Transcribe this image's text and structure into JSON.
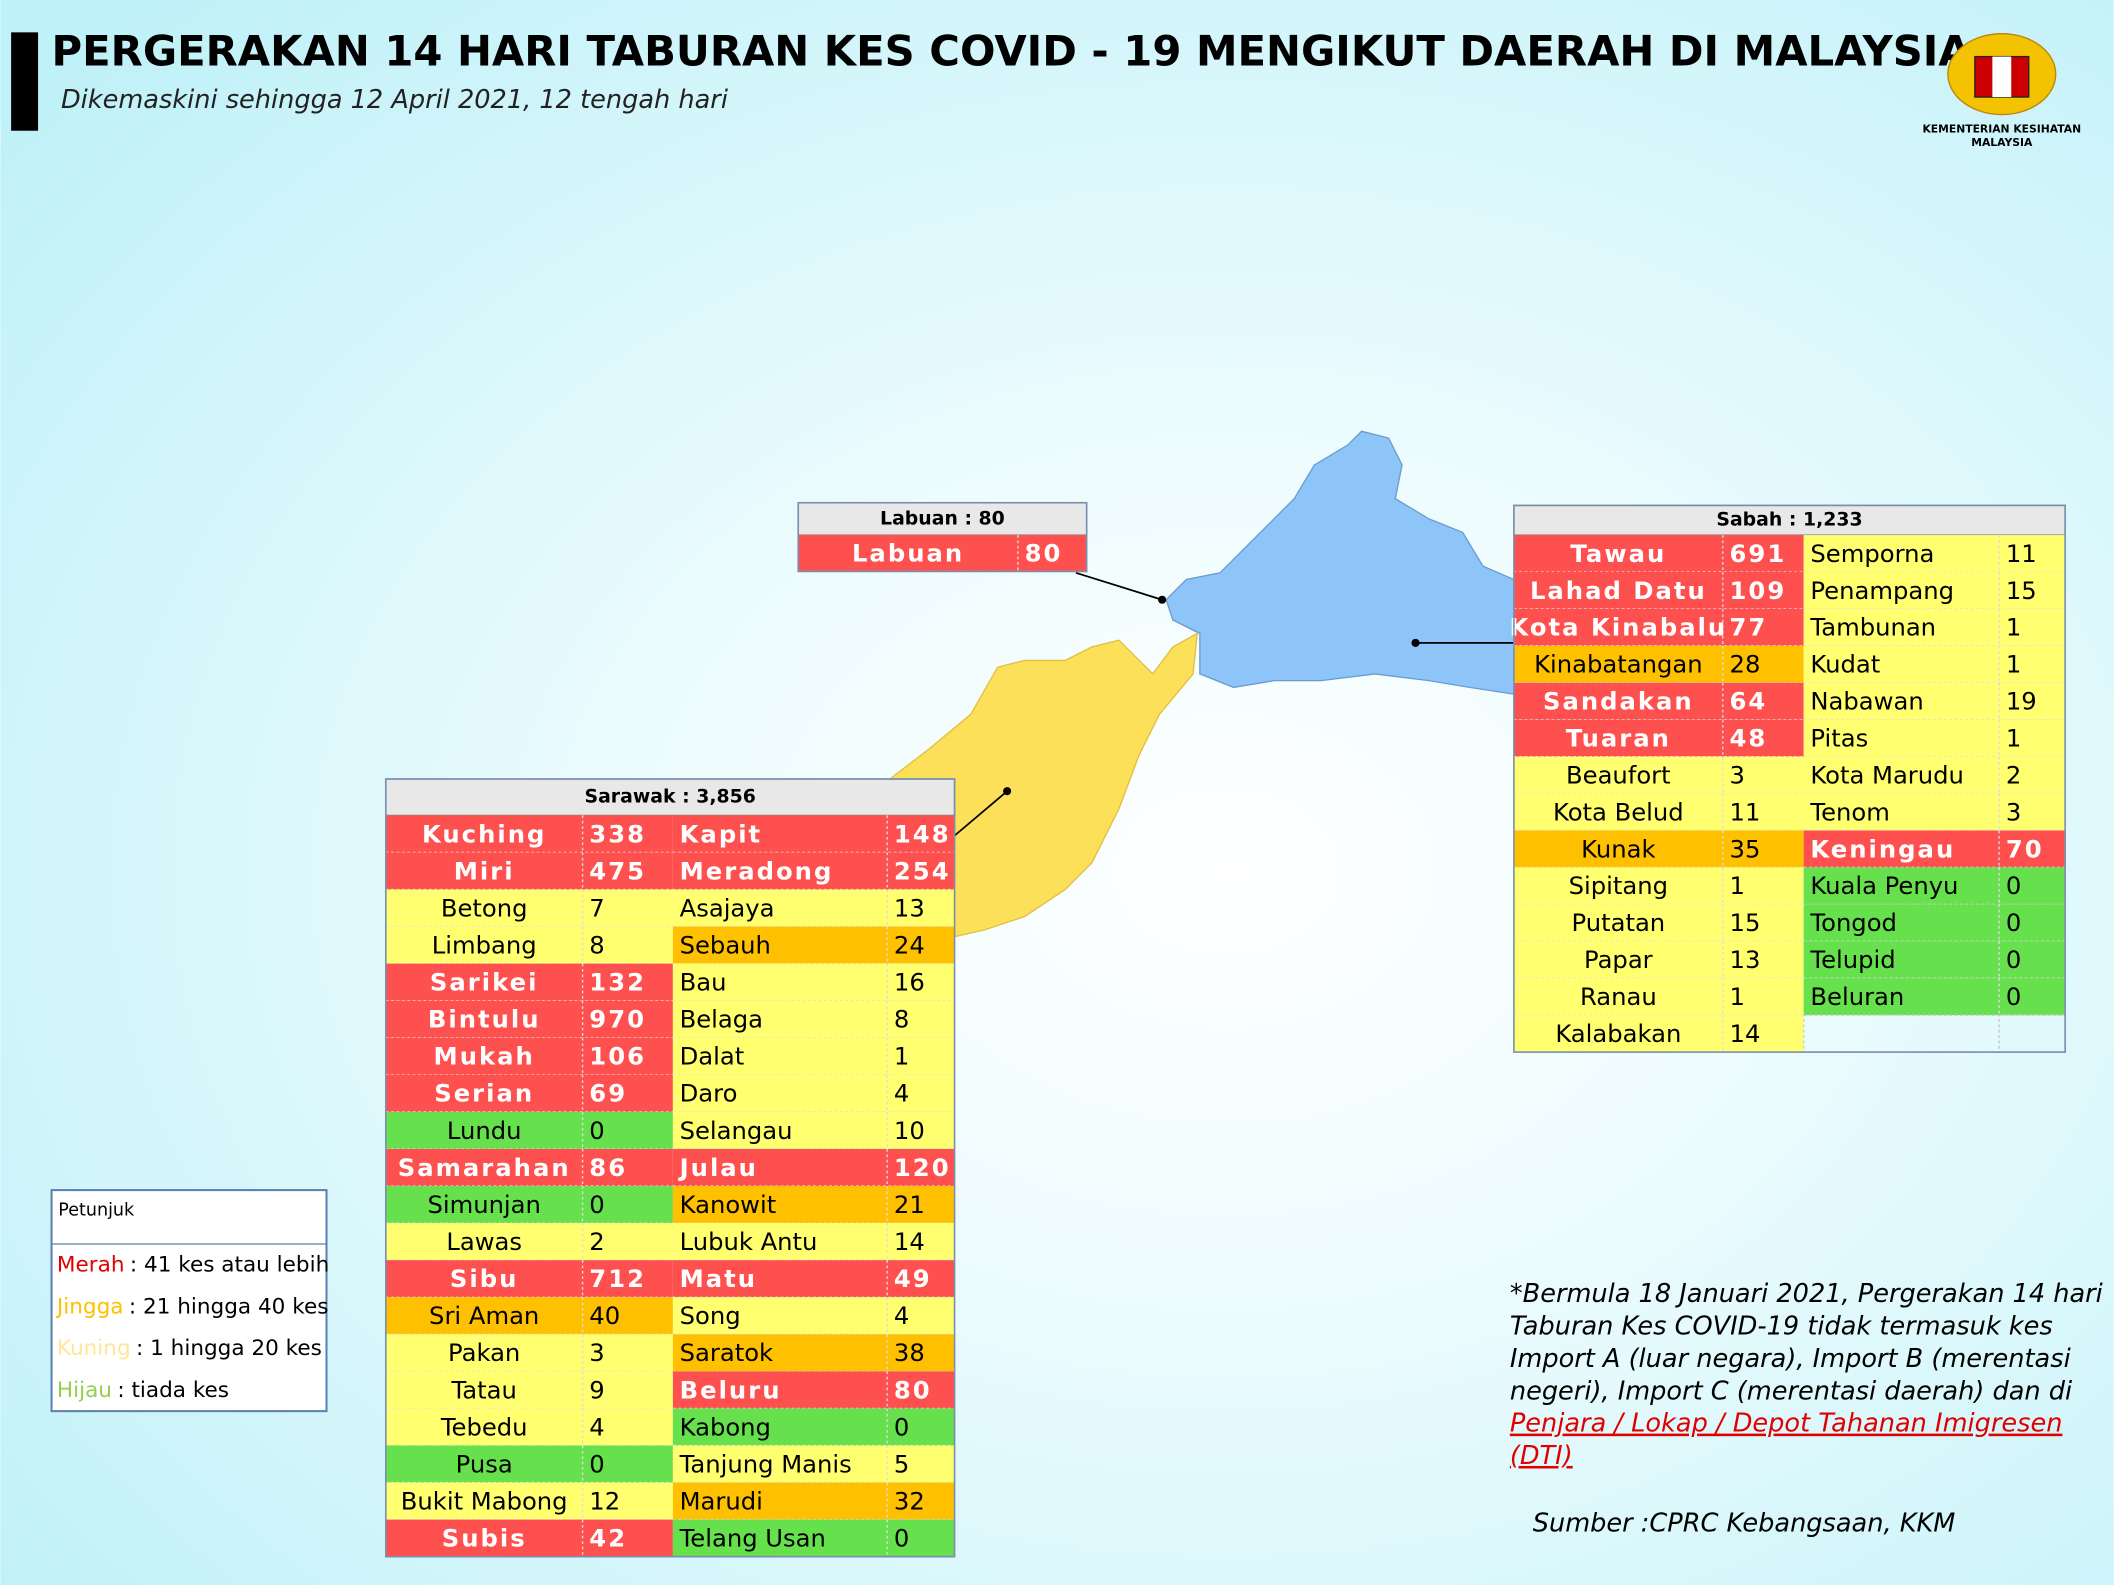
{
  "header": {
    "title": "PERGERAKAN 14 HARI TABURAN KES COVID - 19 MENGIKUT DAERAH DI MALAYSIA",
    "subtitle": "Dikemaskini sehingga 12 April 2021, 12 tengah hari",
    "logo_lines": [
      "KEMENTERIAN KESIHATAN",
      "MALAYSIA"
    ]
  },
  "colors": {
    "red": "#ff5050",
    "orange": "#ffc000",
    "yellow": "#ffff70",
    "green": "#66e04c"
  },
  "labuan": {
    "title": "Labuan : 80",
    "columns": [
      [
        {
          "name": "Labuan",
          "cases": 80,
          "color": "red"
        }
      ]
    ]
  },
  "sabah": {
    "title": "Sabah : 1,233",
    "columns": [
      [
        {
          "name": "Tawau",
          "cases": 691,
          "color": "red"
        },
        {
          "name": "Lahad Datu",
          "cases": 109,
          "color": "red"
        },
        {
          "name": "Kota Kinabalu",
          "cases": 77,
          "color": "red"
        },
        {
          "name": "Kinabatangan",
          "cases": 28,
          "color": "orange"
        },
        {
          "name": "Sandakan",
          "cases": 64,
          "color": "red"
        },
        {
          "name": "Tuaran",
          "cases": 48,
          "color": "red"
        },
        {
          "name": "Beaufort",
          "cases": 3,
          "color": "yellow"
        },
        {
          "name": "Kota Belud",
          "cases": 11,
          "color": "yellow"
        },
        {
          "name": "Kunak",
          "cases": 35,
          "color": "orange"
        },
        {
          "name": "Sipitang",
          "cases": 1,
          "color": "yellow"
        },
        {
          "name": "Putatan",
          "cases": 15,
          "color": "yellow"
        },
        {
          "name": "Papar",
          "cases": 13,
          "color": "yellow"
        },
        {
          "name": "Ranau",
          "cases": 1,
          "color": "yellow"
        },
        {
          "name": "Kalabakan",
          "cases": 14,
          "color": "yellow"
        }
      ],
      [
        {
          "name": "Semporna",
          "cases": 11,
          "color": "yellow"
        },
        {
          "name": "Penampang",
          "cases": 15,
          "color": "yellow"
        },
        {
          "name": "Tambunan",
          "cases": 1,
          "color": "yellow"
        },
        {
          "name": "Kudat",
          "cases": 1,
          "color": "yellow"
        },
        {
          "name": "Nabawan",
          "cases": 19,
          "color": "yellow"
        },
        {
          "name": "Pitas",
          "cases": 1,
          "color": "yellow"
        },
        {
          "name": "Kota Marudu",
          "cases": 2,
          "color": "yellow"
        },
        {
          "name": "Tenom",
          "cases": 3,
          "color": "yellow"
        },
        {
          "name": "Keningau",
          "cases": 70,
          "color": "red"
        },
        {
          "name": "Kuala Penyu",
          "cases": 0,
          "color": "green"
        },
        {
          "name": "Tongod",
          "cases": 0,
          "color": "green"
        },
        {
          "name": "Telupid",
          "cases": 0,
          "color": "green"
        },
        {
          "name": "Beluran",
          "cases": 0,
          "color": "green"
        }
      ]
    ]
  },
  "sarawak": {
    "title": "Sarawak : 3,856",
    "columns": [
      [
        {
          "name": "Kuching",
          "cases": 338,
          "color": "red"
        },
        {
          "name": "Miri",
          "cases": 475,
          "color": "red"
        },
        {
          "name": "Betong",
          "cases": 7,
          "color": "yellow"
        },
        {
          "name": "Limbang",
          "cases": 8,
          "color": "yellow"
        },
        {
          "name": "Sarikei",
          "cases": 132,
          "color": "red"
        },
        {
          "name": "Bintulu",
          "cases": 970,
          "color": "red"
        },
        {
          "name": "Mukah",
          "cases": 106,
          "color": "red"
        },
        {
          "name": "Serian",
          "cases": 69,
          "color": "red"
        },
        {
          "name": "Lundu",
          "cases": 0,
          "color": "green"
        },
        {
          "name": "Samarahan",
          "cases": 86,
          "color": "red"
        },
        {
          "name": "Simunjan",
          "cases": 0,
          "color": "green"
        },
        {
          "name": "Lawas",
          "cases": 2,
          "color": "yellow"
        },
        {
          "name": "Sibu",
          "cases": 712,
          "color": "red"
        },
        {
          "name": "Sri Aman",
          "cases": 40,
          "color": "orange"
        },
        {
          "name": "Pakan",
          "cases": 3,
          "color": "yellow"
        },
        {
          "name": "Tatau",
          "cases": 9,
          "color": "yellow"
        },
        {
          "name": "Tebedu",
          "cases": 4,
          "color": "yellow"
        },
        {
          "name": "Pusa",
          "cases": 0,
          "color": "green"
        },
        {
          "name": "Bukit Mabong",
          "cases": 12,
          "color": "yellow"
        },
        {
          "name": "Subis",
          "cases": 42,
          "color": "red"
        }
      ],
      [
        {
          "name": "Kapit",
          "cases": 148,
          "color": "red"
        },
        {
          "name": "Meradong",
          "cases": 254,
          "color": "red"
        },
        {
          "name": "Asajaya",
          "cases": 13,
          "color": "yellow"
        },
        {
          "name": "Sebauh",
          "cases": 24,
          "color": "orange"
        },
        {
          "name": "Bau",
          "cases": 16,
          "color": "yellow"
        },
        {
          "name": "Belaga",
          "cases": 8,
          "color": "yellow"
        },
        {
          "name": "Dalat",
          "cases": 1,
          "color": "yellow"
        },
        {
          "name": "Daro",
          "cases": 4,
          "color": "yellow"
        },
        {
          "name": "Selangau",
          "cases": 10,
          "color": "yellow"
        },
        {
          "name": "Julau",
          "cases": 120,
          "color": "red"
        },
        {
          "name": "Kanowit",
          "cases": 21,
          "color": "orange"
        },
        {
          "name": "Lubuk Antu",
          "cases": 14,
          "color": "yellow"
        },
        {
          "name": "Matu",
          "cases": 49,
          "color": "red"
        },
        {
          "name": "Song",
          "cases": 4,
          "color": "yellow"
        },
        {
          "name": "Saratok",
          "cases": 38,
          "color": "orange"
        },
        {
          "name": "Beluru",
          "cases": 80,
          "color": "red"
        },
        {
          "name": "Kabong",
          "cases": 0,
          "color": "green"
        },
        {
          "name": "Tanjung Manis",
          "cases": 5,
          "color": "yellow"
        },
        {
          "name": "Marudi",
          "cases": 32,
          "color": "orange"
        },
        {
          "name": "Telang Usan",
          "cases": 0,
          "color": "green"
        }
      ]
    ]
  },
  "legend": {
    "title": "Petunjuk",
    "items": [
      {
        "term": "Merah",
        "text": ": 41 kes atau lebih",
        "color": "#e00000"
      },
      {
        "term": "Jingga",
        "text": ": 21 hingga 40 kes",
        "color": "#ffc000"
      },
      {
        "term": "Kuning",
        "text": ": 1 hingga 20 kes",
        "color": "#ffe699"
      },
      {
        "term": "Hijau",
        "text": ": tiada kes",
        "color": "#92d050"
      }
    ]
  },
  "note": {
    "lines": [
      "*Bermula 18 Januari 2021, Pergerakan 14 hari",
      "Taburan Kes COVID-19 tidak termasuk kes",
      "Import A (luar negara), Import B (merentasi",
      "negeri), Import C (merentasi daerah) dan di"
    ],
    "link_lines": [
      "Penjara / Lokap / Depot Tahanan Imigresen",
      "(DTI)"
    ]
  },
  "source": "Sumber :CPRC Kebangsaan,  KKM"
}
